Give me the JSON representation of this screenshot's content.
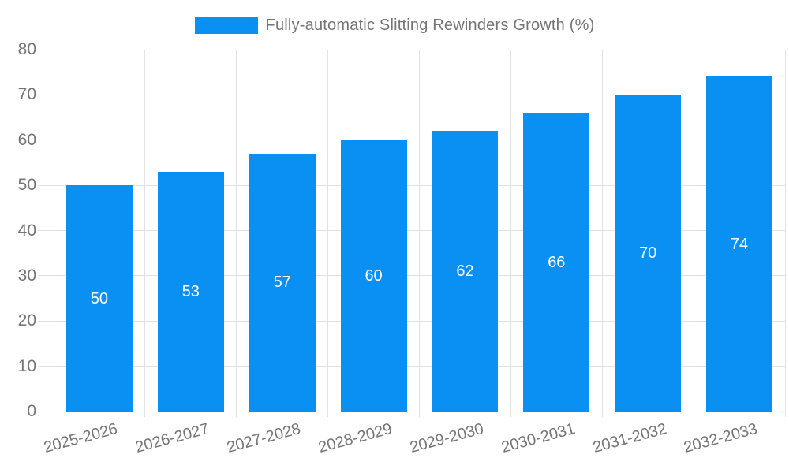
{
  "chart_data": {
    "type": "bar",
    "title": "Fully-automatic Slitting Rewinders Growth (%)",
    "categories": [
      "2025-2026",
      "2026-2027",
      "2027-2028",
      "2028-2029",
      "2029-2030",
      "2030-2031",
      "2031-2032",
      "2032-2033"
    ],
    "values": [
      50,
      53,
      57,
      60,
      62,
      66,
      70,
      74
    ],
    "xlabel": "",
    "ylabel": "",
    "ylim": [
      0,
      80
    ],
    "yticks": [
      0,
      10,
      20,
      30,
      40,
      50,
      60,
      70,
      80
    ],
    "grid": true,
    "legend_position": "top-center",
    "value_labels": "inside-middle",
    "colors": {
      "bar": "#0a8ff2",
      "value_label": "#ffffff",
      "axis_text": "#757575",
      "gridline": "#e2e2e2",
      "axis_line": "#9e9e9e",
      "background": "#ffffff"
    }
  }
}
